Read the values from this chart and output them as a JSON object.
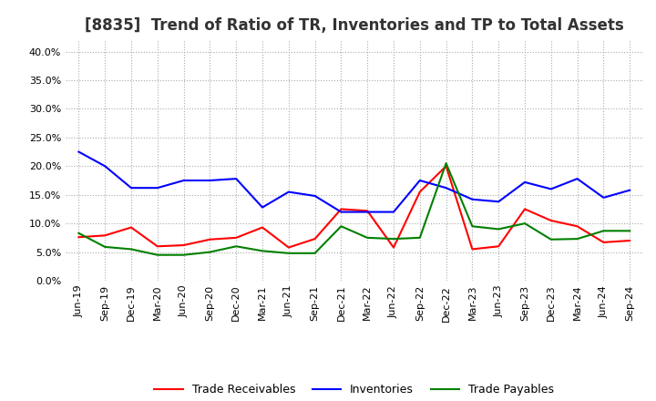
{
  "title": "[8835]  Trend of Ratio of TR, Inventories and TP to Total Assets",
  "labels": [
    "Jun-19",
    "Sep-19",
    "Dec-19",
    "Mar-20",
    "Jun-20",
    "Sep-20",
    "Dec-20",
    "Mar-21",
    "Jun-21",
    "Sep-21",
    "Dec-21",
    "Mar-22",
    "Jun-22",
    "Sep-22",
    "Dec-22",
    "Mar-23",
    "Jun-23",
    "Sep-23",
    "Dec-23",
    "Mar-24",
    "Jun-24",
    "Sep-24"
  ],
  "trade_receivables": [
    0.076,
    0.079,
    0.093,
    0.06,
    0.062,
    0.072,
    0.075,
    0.093,
    0.058,
    0.073,
    0.125,
    0.122,
    0.058,
    0.155,
    0.2,
    0.055,
    0.06,
    0.125,
    0.105,
    0.095,
    0.067,
    0.07
  ],
  "inventories": [
    0.225,
    0.2,
    0.162,
    0.162,
    0.175,
    0.175,
    0.178,
    0.128,
    0.155,
    0.148,
    0.12,
    0.12,
    0.12,
    0.175,
    0.162,
    0.142,
    0.138,
    0.172,
    0.16,
    0.178,
    0.145,
    0.158
  ],
  "trade_payables": [
    0.083,
    0.059,
    0.055,
    0.045,
    0.045,
    0.05,
    0.06,
    0.052,
    0.048,
    0.048,
    0.095,
    0.075,
    0.073,
    0.075,
    0.205,
    0.095,
    0.09,
    0.1,
    0.072,
    0.073,
    0.087,
    0.087
  ],
  "tr_color": "#FF0000",
  "inv_color": "#0000FF",
  "tp_color": "#008000",
  "ylim": [
    0,
    0.42
  ],
  "yticks": [
    0.0,
    0.05,
    0.1,
    0.15,
    0.2,
    0.25,
    0.3,
    0.35,
    0.4
  ],
  "legend_labels": [
    "Trade Receivables",
    "Inventories",
    "Trade Payables"
  ],
  "bg_color": "#FFFFFF",
  "plot_bg_color": "#FFFFFF",
  "grid_color": "#AAAAAA",
  "title_fontsize": 12,
  "title_color": "#333333",
  "tick_fontsize": 8,
  "legend_fontsize": 9
}
